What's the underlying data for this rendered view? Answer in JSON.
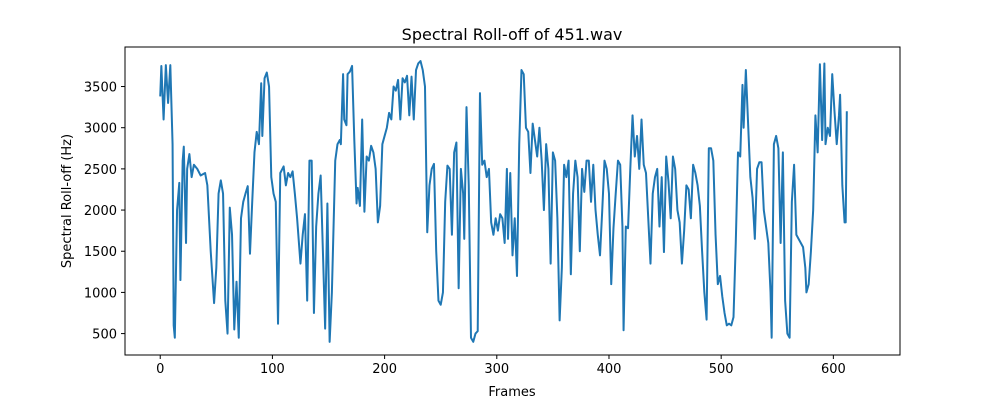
{
  "chart_data": {
    "type": "line",
    "title": "Spectral Roll-off of 451.wav",
    "x_label": "Frames",
    "y_label": "Spectral Roll-off (Hz)",
    "x": [
      0,
      1,
      3,
      5,
      7,
      9,
      11,
      12,
      13,
      15,
      17,
      18,
      20,
      21,
      23,
      24,
      26,
      28,
      30,
      33,
      36,
      40,
      42,
      45,
      48,
      50,
      52,
      54,
      56,
      58,
      60,
      62,
      64,
      66,
      68,
      70,
      72,
      74,
      76,
      78,
      80,
      82,
      84,
      86,
      88,
      90,
      91,
      93,
      95,
      97,
      99,
      101,
      103,
      105,
      107,
      110,
      112,
      114,
      116,
      118,
      120,
      122,
      125,
      127,
      129,
      131,
      133,
      135,
      137,
      139,
      141,
      143,
      145,
      147,
      149,
      151,
      153,
      156,
      158,
      160,
      161,
      163,
      164,
      166,
      167,
      169,
      171,
      173,
      175,
      176,
      178,
      180,
      182,
      184,
      186,
      188,
      190,
      192,
      194,
      196,
      198,
      200,
      202,
      204,
      206,
      208,
      210,
      212,
      214,
      216,
      218,
      220,
      222,
      224,
      226,
      228,
      230,
      232,
      234,
      236,
      238,
      240,
      242,
      244,
      246,
      248,
      250,
      252,
      254,
      256,
      258,
      260,
      262,
      264,
      266,
      268,
      270,
      271,
      273,
      275,
      277,
      279,
      281,
      283,
      285,
      287,
      289,
      291,
      293,
      295,
      297,
      299,
      301,
      303,
      305,
      307,
      309,
      310,
      312,
      314,
      316,
      318,
      320,
      322,
      324,
      326,
      328,
      330,
      332,
      334,
      336,
      338,
      340,
      342,
      344,
      346,
      348,
      350,
      352,
      354,
      356,
      358,
      360,
      362,
      364,
      366,
      368,
      370,
      372,
      374,
      376,
      378,
      380,
      382,
      384,
      386,
      388,
      390,
      392,
      394,
      396,
      398,
      400,
      402,
      404,
      406,
      408,
      410,
      412,
      413,
      415,
      417,
      419,
      421,
      423,
      425,
      427,
      429,
      431,
      433,
      435,
      437,
      439,
      441,
      443,
      445,
      447,
      449,
      451,
      453,
      455,
      457,
      459,
      461,
      463,
      465,
      467,
      469,
      471,
      473,
      475,
      477,
      479,
      481,
      483,
      485,
      487,
      489,
      491,
      493,
      495,
      497,
      499,
      501,
      503,
      505,
      507,
      509,
      511,
      513,
      515,
      517,
      519,
      520,
      522,
      524,
      526,
      528,
      530,
      532,
      534,
      536,
      538,
      540,
      542,
      544,
      545,
      547,
      549,
      551,
      553,
      555,
      557,
      559,
      561,
      563,
      565,
      567,
      569,
      571,
      573,
      575,
      576,
      578,
      580,
      582,
      584,
      586,
      588,
      590,
      592,
      593,
      595,
      597,
      599,
      601,
      603,
      605,
      606,
      608,
      610,
      611,
      612
    ],
    "series": [
      {
        "name": "Spectral Roll-off",
        "color": "#1f77b4",
        "values": [
          3380,
          3750,
          3100,
          3760,
          3300,
          3760,
          2800,
          600,
          450,
          2000,
          2330,
          1150,
          2600,
          2770,
          1600,
          2500,
          2680,
          2400,
          2550,
          2500,
          2420,
          2450,
          2300,
          1500,
          870,
          1300,
          2200,
          2360,
          2200,
          900,
          500,
          2030,
          1700,
          550,
          1130,
          450,
          1900,
          2100,
          2200,
          2290,
          1470,
          2100,
          2700,
          2950,
          2800,
          3540,
          2900,
          3600,
          3670,
          3500,
          2400,
          2200,
          2100,
          620,
          2450,
          2530,
          2300,
          2450,
          2400,
          2470,
          2200,
          1900,
          1350,
          1700,
          1950,
          900,
          2600,
          2600,
          750,
          1800,
          2200,
          2420,
          1500,
          560,
          2080,
          400,
          1000,
          2600,
          2800,
          2850,
          2800,
          3650,
          3100,
          3030,
          3650,
          3680,
          3750,
          2850,
          2080,
          2270,
          2050,
          3100,
          1980,
          2650,
          2600,
          2780,
          2700,
          2500,
          1850,
          2050,
          2800,
          2900,
          3000,
          3180,
          3100,
          3500,
          3450,
          3580,
          3100,
          3600,
          3550,
          3630,
          3150,
          3620,
          3100,
          3700,
          3780,
          3810,
          3700,
          3500,
          1730,
          2300,
          2500,
          2560,
          1500,
          900,
          850,
          1000,
          2100,
          2540,
          2500,
          1700,
          2700,
          2820,
          1050,
          2500,
          2200,
          1650,
          3250,
          2300,
          450,
          400,
          500,
          530,
          3420,
          2550,
          2600,
          2400,
          2500,
          1850,
          1700,
          1900,
          1750,
          1950,
          1900,
          1600,
          2500,
          1650,
          2450,
          1450,
          1900,
          1200,
          2800,
          3700,
          3650,
          3000,
          2950,
          2450,
          3050,
          2850,
          2650,
          3000,
          2600,
          2000,
          2800,
          2500,
          1350,
          2700,
          2600,
          1900,
          660,
          1300,
          2550,
          2400,
          2600,
          1220,
          2200,
          2600,
          2400,
          1500,
          2500,
          2220,
          2600,
          2600,
          2100,
          2550,
          2000,
          1700,
          1450,
          2000,
          2600,
          2500,
          2200,
          1100,
          1780,
          2200,
          2600,
          2550,
          1800,
          540,
          1800,
          1780,
          2500,
          3150,
          2650,
          2900,
          2500,
          3100,
          2550,
          2450,
          1900,
          1350,
          2200,
          2400,
          2500,
          1800,
          2400,
          1490,
          2650,
          2350,
          1900,
          2650,
          2500,
          2000,
          1850,
          1350,
          1750,
          2300,
          2250,
          1900,
          2550,
          2450,
          2300,
          2050,
          1500,
          1000,
          670,
          2750,
          2750,
          2600,
          1700,
          1100,
          1200,
          950,
          750,
          600,
          620,
          600,
          700,
          1600,
          2700,
          2650,
          3520,
          3000,
          3700,
          3050,
          2400,
          2150,
          1650,
          2500,
          2580,
          2580,
          2000,
          1800,
          1600,
          1000,
          450,
          2800,
          2900,
          2750,
          1600,
          2700,
          900,
          500,
          450,
          2100,
          2550,
          1700,
          1650,
          1600,
          1550,
          1300,
          1000,
          1100,
          1500,
          2000,
          3150,
          2700,
          3770,
          2850,
          3780,
          2800,
          3000,
          2900,
          3650,
          3200,
          2800,
          3150,
          3400,
          2300,
          1850,
          1850,
          3200
        ]
      }
    ],
    "xlim": [
      -31.4,
      659.4
    ],
    "ylim": [
      240,
      3980
    ],
    "xticks": [
      0,
      100,
      200,
      300,
      400,
      500,
      600
    ],
    "yticks": [
      500,
      1000,
      1500,
      2000,
      2500,
      3000,
      3500
    ]
  }
}
